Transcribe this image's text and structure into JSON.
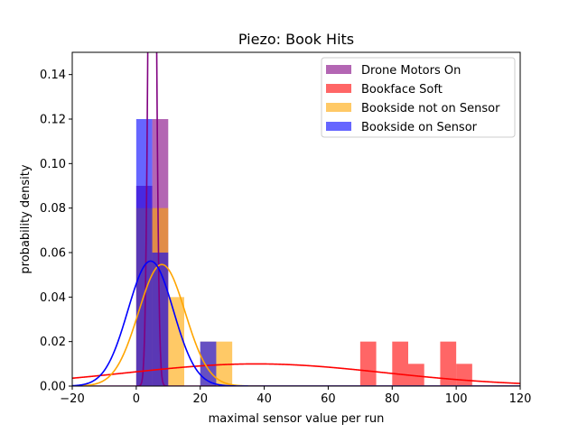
{
  "chart_data": {
    "type": "histogram",
    "title": "Piezo: Book Hits",
    "xlabel": "maximal sensor value per run",
    "ylabel": "probability density",
    "xlim": [
      -20,
      120
    ],
    "ylim": [
      0,
      0.15
    ],
    "xticks": [
      "-20",
      "0",
      "20",
      "40",
      "60",
      "80",
      "100",
      "120"
    ],
    "yticks": [
      "0.00",
      "0.02",
      "0.04",
      "0.06",
      "0.08",
      "0.10",
      "0.12",
      "0.14"
    ],
    "grid": false,
    "legend_position": "top-right",
    "series": [
      {
        "name": "Drone Motors On",
        "color": "#800080",
        "alpha": 0.6,
        "bins": [
          [
            0,
            5,
            0.09
          ],
          [
            5,
            10,
            0.12
          ]
        ],
        "fit": {
          "mean": 5.0,
          "std": 1.0,
          "color": "#800080"
        }
      },
      {
        "name": "Bookface Soft",
        "color": "#ff0000",
        "alpha": 0.6,
        "bins": [
          [
            70,
            75,
            0.02
          ],
          [
            80,
            85,
            0.02
          ],
          [
            85,
            90,
            0.01
          ],
          [
            95,
            100,
            0.02
          ],
          [
            100,
            105,
            0.01
          ]
        ],
        "fit": {
          "mean": 37.5,
          "std": 40.0,
          "color": "#ff0000"
        }
      },
      {
        "name": "Bookside not on Sensor",
        "color": "#ffa500",
        "alpha": 0.6,
        "bins": [
          [
            0,
            5,
            0.08
          ],
          [
            5,
            10,
            0.08
          ],
          [
            10,
            15,
            0.04
          ],
          [
            15,
            20,
            0.0
          ],
          [
            20,
            25,
            0.02
          ],
          [
            25,
            30,
            0.02
          ]
        ],
        "fit": {
          "mean": 8.0,
          "std": 7.3,
          "color": "#ffa500"
        }
      },
      {
        "name": "Bookside on Sensor",
        "color": "#0000ff",
        "alpha": 0.6,
        "bins": [
          [
            0,
            5,
            0.12
          ],
          [
            5,
            10,
            0.06
          ],
          [
            10,
            15,
            0.0
          ],
          [
            15,
            20,
            0.0
          ],
          [
            20,
            25,
            0.02
          ]
        ],
        "fit": {
          "mean": 4.5,
          "std": 7.1,
          "color": "#0000ff"
        }
      }
    ]
  }
}
